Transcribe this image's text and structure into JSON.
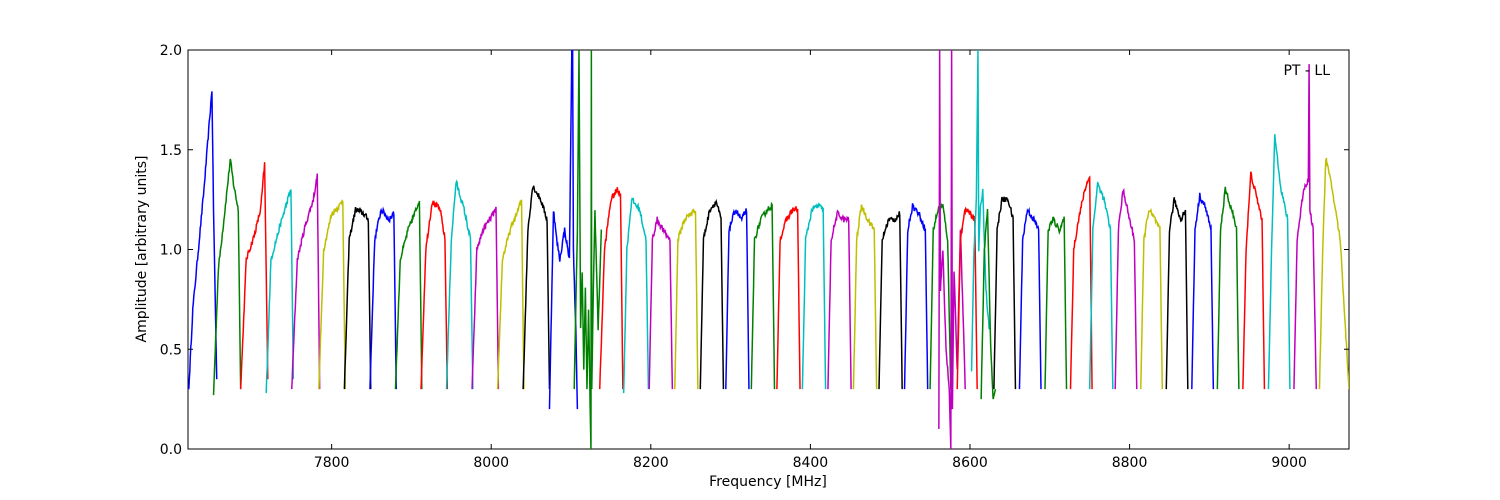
{
  "chart_data": {
    "type": "line",
    "title": "",
    "xlabel": "Frequency [MHz]",
    "ylabel": "Amplitude [arbitrary units]",
    "xlim": [
      7620,
      9075
    ],
    "ylim": [
      0.0,
      2.0
    ],
    "x_ticks": [
      7800,
      8000,
      8200,
      8400,
      8600,
      8800,
      9000
    ],
    "x_tick_labels": [
      "7800",
      "8000",
      "8200",
      "8400",
      "8600",
      "8800",
      "9000"
    ],
    "y_ticks": [
      0.0,
      0.5,
      1.0,
      1.5,
      2.0
    ],
    "y_tick_labels": [
      "0.0",
      "0.5",
      "1.0",
      "1.5",
      "2.0"
    ],
    "grid": false,
    "legend": "none",
    "annotation": "PT - LL",
    "color_cycle": [
      "#0000ff",
      "#008000",
      "#ff0000",
      "#00bfbf",
      "#bf00bf",
      "#bfbf00",
      "#000000"
    ],
    "channel_width_mhz": 32,
    "channels": [
      {
        "start": 7620,
        "color": "#0000ff",
        "x": [
          7621,
          7626,
          7640,
          7650,
          7652,
          7656
        ],
        "y": [
          0.3,
          0.7,
          1.3,
          1.8,
          1.2,
          0.35
        ]
      },
      {
        "start": 7651,
        "color": "#008000",
        "x": [
          7652,
          7658,
          7665,
          7673,
          7677,
          7683,
          7686
        ],
        "y": [
          0.27,
          0.9,
          1.15,
          1.45,
          1.33,
          1.2,
          0.3
        ]
      },
      {
        "start": 7684,
        "color": "#ff0000",
        "x": [
          7686,
          7693,
          7703,
          7711,
          7716,
          7720
        ],
        "y": [
          0.3,
          0.95,
          1.07,
          1.2,
          1.43,
          0.35
        ]
      },
      {
        "start": 7716,
        "color": "#00bfbf",
        "x": [
          7718,
          7724,
          7734,
          7745,
          7749,
          7752
        ],
        "y": [
          0.28,
          0.95,
          1.1,
          1.25,
          1.3,
          0.35
        ]
      },
      {
        "start": 7748,
        "color": "#bf00bf",
        "x": [
          7750,
          7757,
          7767,
          7777,
          7782,
          7785
        ],
        "y": [
          0.3,
          0.95,
          1.12,
          1.25,
          1.37,
          0.3
        ]
      },
      {
        "start": 7780,
        "color": "#bfbf00",
        "x": [
          7784,
          7790,
          7800,
          7810,
          7814,
          7817
        ],
        "y": [
          0.3,
          1.0,
          1.18,
          1.22,
          1.25,
          0.3
        ]
      },
      {
        "start": 7812,
        "color": "#000000",
        "x": [
          7816,
          7822,
          7830,
          7840,
          7846,
          7849
        ],
        "y": [
          0.3,
          1.05,
          1.2,
          1.18,
          1.15,
          0.3
        ]
      },
      {
        "start": 7844,
        "color": "#0000ff",
        "x": [
          7848,
          7854,
          7862,
          7872,
          7878,
          7881
        ],
        "y": [
          0.3,
          1.05,
          1.2,
          1.15,
          1.18,
          0.3
        ]
      },
      {
        "start": 7876,
        "color": "#008000",
        "x": [
          7880,
          7886,
          7896,
          7906,
          7910,
          7913
        ],
        "y": [
          0.3,
          0.95,
          1.1,
          1.2,
          1.25,
          0.3
        ]
      },
      {
        "start": 7908,
        "color": "#ff0000",
        "x": [
          7912,
          7918,
          7926,
          7936,
          7942,
          7945
        ],
        "y": [
          0.3,
          1.0,
          1.24,
          1.2,
          1.05,
          0.3
        ]
      },
      {
        "start": 7940,
        "color": "#00bfbf",
        "x": [
          7944,
          7950,
          7956,
          7966,
          7974,
          7977
        ],
        "y": [
          0.3,
          1.05,
          1.34,
          1.2,
          1.05,
          0.3
        ]
      },
      {
        "start": 7972,
        "color": "#bf00bf",
        "x": [
          7976,
          7982,
          7990,
          7998,
          8006,
          8009
        ],
        "y": [
          0.3,
          1.0,
          1.1,
          1.15,
          1.2,
          0.3
        ]
      },
      {
        "start": 8004,
        "color": "#bfbf00",
        "x": [
          8008,
          8014,
          8024,
          8034,
          8038,
          8041
        ],
        "y": [
          0.3,
          0.95,
          1.1,
          1.2,
          1.25,
          0.3
        ]
      },
      {
        "start": 8036,
        "color": "#000000",
        "x": [
          8040,
          8046,
          8052,
          8062,
          8070,
          8073
        ],
        "y": [
          0.3,
          1.1,
          1.32,
          1.25,
          1.15,
          0.3
        ]
      },
      {
        "start": 8068,
        "color": "#0000ff",
        "x": [
          8073,
          8078,
          8082,
          8086,
          8092,
          8098,
          8101,
          8102,
          8103,
          8106,
          8108
        ],
        "y": [
          0.2,
          1.2,
          1.05,
          0.95,
          1.1,
          0.95,
          2.0,
          2.0,
          1.0,
          0.6,
          0.2
        ]
      },
      {
        "start": 8100,
        "color": "#008000",
        "x": [
          8104,
          8108,
          8110,
          8112,
          8114,
          8116,
          8118,
          8120,
          8122,
          8124,
          8125,
          8125.5,
          8126,
          8128,
          8130,
          8134,
          8138
        ],
        "y": [
          0.3,
          1.1,
          2.0,
          0.6,
          0.9,
          0.4,
          0.8,
          0.3,
          0.7,
          0.2,
          0.0,
          2.0,
          0.3,
          0.8,
          1.2,
          0.6,
          1.1
        ]
      },
      {
        "start": 8132,
        "color": "#ff0000",
        "x": [
          8136,
          8142,
          8150,
          8158,
          8162,
          8165
        ],
        "y": [
          0.3,
          1.0,
          1.25,
          1.3,
          1.28,
          0.3
        ]
      },
      {
        "start": 8164,
        "color": "#00bfbf",
        "x": [
          8166,
          8170,
          8176,
          8186,
          8194,
          8197
        ],
        "y": [
          0.28,
          1.0,
          1.25,
          1.2,
          1.05,
          0.3
        ]
      },
      {
        "start": 8196,
        "color": "#bf00bf",
        "x": [
          8198,
          8202,
          8208,
          8218,
          8224,
          8227
        ],
        "y": [
          0.3,
          1.05,
          1.15,
          1.08,
          1.05,
          0.3
        ]
      },
      {
        "start": 8228,
        "color": "#bfbf00",
        "x": [
          8230,
          8234,
          8242,
          8250,
          8256,
          8259
        ],
        "y": [
          0.3,
          1.05,
          1.15,
          1.18,
          1.2,
          0.3
        ]
      },
      {
        "start": 8260,
        "color": "#000000",
        "x": [
          8262,
          8266,
          8274,
          8282,
          8288,
          8291
        ],
        "y": [
          0.3,
          1.05,
          1.2,
          1.24,
          1.15,
          0.3
        ]
      },
      {
        "start": 8292,
        "color": "#0000ff",
        "x": [
          8294,
          8298,
          8306,
          8314,
          8320,
          8323
        ],
        "y": [
          0.3,
          1.1,
          1.2,
          1.15,
          1.2,
          0.3
        ]
      },
      {
        "start": 8324,
        "color": "#008000",
        "x": [
          8326,
          8330,
          8338,
          8346,
          8352,
          8355
        ],
        "y": [
          0.3,
          1.05,
          1.15,
          1.2,
          1.22,
          0.3
        ]
      },
      {
        "start": 8356,
        "color": "#ff0000",
        "x": [
          8358,
          8362,
          8370,
          8378,
          8384,
          8387
        ],
        "y": [
          0.3,
          1.05,
          1.15,
          1.2,
          1.2,
          0.3
        ]
      },
      {
        "start": 8388,
        "color": "#00bfbf",
        "x": [
          8390,
          8394,
          8402,
          8410,
          8416,
          8419
        ],
        "y": [
          0.3,
          1.05,
          1.2,
          1.22,
          1.2,
          0.3
        ]
      },
      {
        "start": 8420,
        "color": "#bf00bf",
        "x": [
          8422,
          8426,
          8434,
          8442,
          8448,
          8451
        ],
        "y": [
          0.3,
          1.05,
          1.18,
          1.15,
          1.15,
          0.3
        ]
      },
      {
        "start": 8452,
        "color": "#bfbf00",
        "x": [
          8454,
          8458,
          8464,
          8472,
          8480,
          8483
        ],
        "y": [
          0.3,
          1.05,
          1.22,
          1.15,
          1.1,
          0.3
        ]
      },
      {
        "start": 8484,
        "color": "#000000",
        "x": [
          8486,
          8490,
          8498,
          8506,
          8512,
          8515
        ],
        "y": [
          0.3,
          1.05,
          1.15,
          1.15,
          1.18,
          0.3
        ]
      },
      {
        "start": 8516,
        "color": "#0000ff",
        "x": [
          8518,
          8522,
          8528,
          8536,
          8544,
          8547
        ],
        "y": [
          0.3,
          1.1,
          1.22,
          1.18,
          1.1,
          0.3
        ]
      },
      {
        "start": 8548,
        "color": "#008000",
        "x": [
          8550,
          8554,
          8560,
          8566,
          8572,
          8576
        ],
        "y": [
          0.3,
          1.1,
          1.2,
          1.22,
          1.05,
          0.3
        ]
      },
      {
        "start": 8560,
        "color": "#bf00bf",
        "x": [
          8561,
          8562,
          8563,
          8566,
          8570,
          8574,
          8576,
          8577,
          8578,
          8580,
          8584,
          8588,
          8592,
          8594
        ],
        "y": [
          0.1,
          2.0,
          0.8,
          1.0,
          0.5,
          0.3,
          0.0,
          2.0,
          0.2,
          0.9,
          0.4,
          1.1,
          0.6,
          0.3
        ]
      },
      {
        "start": 8580,
        "color": "#ff0000",
        "x": [
          8584,
          8588,
          8594,
          8600,
          8606,
          8609
        ],
        "y": [
          0.3,
          1.05,
          1.2,
          1.18,
          1.15,
          0.3
        ]
      },
      {
        "start": 8600,
        "color": "#00bfbf",
        "x": [
          8602,
          8605,
          8608,
          8610,
          8611,
          8613,
          8616,
          8620,
          8624
        ],
        "y": [
          0.4,
          1.0,
          1.25,
          2.0,
          1.0,
          1.2,
          1.3,
          0.8,
          0.6
        ]
      },
      {
        "start": 8612,
        "color": "#008000",
        "x": [
          8614,
          8618,
          8622,
          8626,
          8629,
          8632
        ],
        "y": [
          0.25,
          1.0,
          1.2,
          0.5,
          0.25,
          0.3
        ]
      },
      {
        "start": 8628,
        "color": "#000000",
        "x": [
          8630,
          8634,
          8640,
          8648,
          8654,
          8657
        ],
        "y": [
          0.3,
          1.1,
          1.25,
          1.25,
          1.15,
          0.3
        ]
      },
      {
        "start": 8660,
        "color": "#0000ff",
        "x": [
          8662,
          8666,
          8672,
          8680,
          8686,
          8689
        ],
        "y": [
          0.3,
          1.05,
          1.2,
          1.15,
          1.1,
          0.3
        ]
      },
      {
        "start": 8692,
        "color": "#008000",
        "x": [
          8694,
          8698,
          8704,
          8712,
          8718,
          8721
        ],
        "y": [
          0.3,
          1.1,
          1.15,
          1.1,
          1.15,
          0.3
        ]
      },
      {
        "start": 8724,
        "color": "#ff0000",
        "x": [
          8726,
          8730,
          8736,
          8744,
          8750,
          8753
        ],
        "y": [
          0.3,
          1.0,
          1.15,
          1.3,
          1.37,
          0.3
        ]
      },
      {
        "start": 8748,
        "color": "#00bfbf",
        "x": [
          8750,
          8754,
          8760,
          8768,
          8776,
          8779
        ],
        "y": [
          0.3,
          1.1,
          1.33,
          1.25,
          1.1,
          0.3
        ]
      },
      {
        "start": 8780,
        "color": "#bf00bf",
        "x": [
          8782,
          8786,
          8792,
          8800,
          8806,
          8809
        ],
        "y": [
          0.3,
          1.1,
          1.3,
          1.15,
          1.05,
          0.3
        ]
      },
      {
        "start": 8812,
        "color": "#bfbf00",
        "x": [
          8814,
          8818,
          8824,
          8832,
          8838,
          8841
        ],
        "y": [
          0.3,
          1.05,
          1.2,
          1.15,
          1.1,
          0.3
        ]
      },
      {
        "start": 8844,
        "color": "#000000",
        "x": [
          8846,
          8850,
          8856,
          8864,
          8870,
          8873
        ],
        "y": [
          0.3,
          1.1,
          1.25,
          1.15,
          1.2,
          0.3
        ]
      },
      {
        "start": 8876,
        "color": "#0000ff",
        "x": [
          8878,
          8882,
          8888,
          8896,
          8902,
          8905
        ],
        "y": [
          0.3,
          1.1,
          1.27,
          1.2,
          1.1,
          0.3
        ]
      },
      {
        "start": 8908,
        "color": "#008000",
        "x": [
          8910,
          8914,
          8920,
          8928,
          8934,
          8937
        ],
        "y": [
          0.3,
          1.1,
          1.3,
          1.2,
          1.1,
          0.3
        ]
      },
      {
        "start": 8940,
        "color": "#ff0000",
        "x": [
          8942,
          8946,
          8952,
          8960,
          8966,
          8969
        ],
        "y": [
          0.3,
          1.0,
          1.38,
          1.25,
          1.15,
          0.3
        ]
      },
      {
        "start": 8972,
        "color": "#00bfbf",
        "x": [
          8974,
          8978,
          8982,
          8990,
          8998,
          9001
        ],
        "y": [
          0.3,
          1.0,
          1.57,
          1.3,
          1.15,
          0.3
        ]
      },
      {
        "start": 9004,
        "color": "#bf00bf",
        "x": [
          9006,
          9010,
          9018,
          9024,
          9025,
          9026,
          9030,
          9034
        ],
        "y": [
          0.3,
          1.05,
          1.3,
          1.35,
          1.92,
          1.2,
          1.1,
          0.3
        ]
      },
      {
        "start": 9036,
        "color": "#bfbf00",
        "x": [
          9038,
          9042,
          9046,
          9054,
          9064,
          9075
        ],
        "y": [
          0.3,
          1.0,
          1.46,
          1.3,
          1.05,
          0.3
        ]
      }
    ]
  }
}
